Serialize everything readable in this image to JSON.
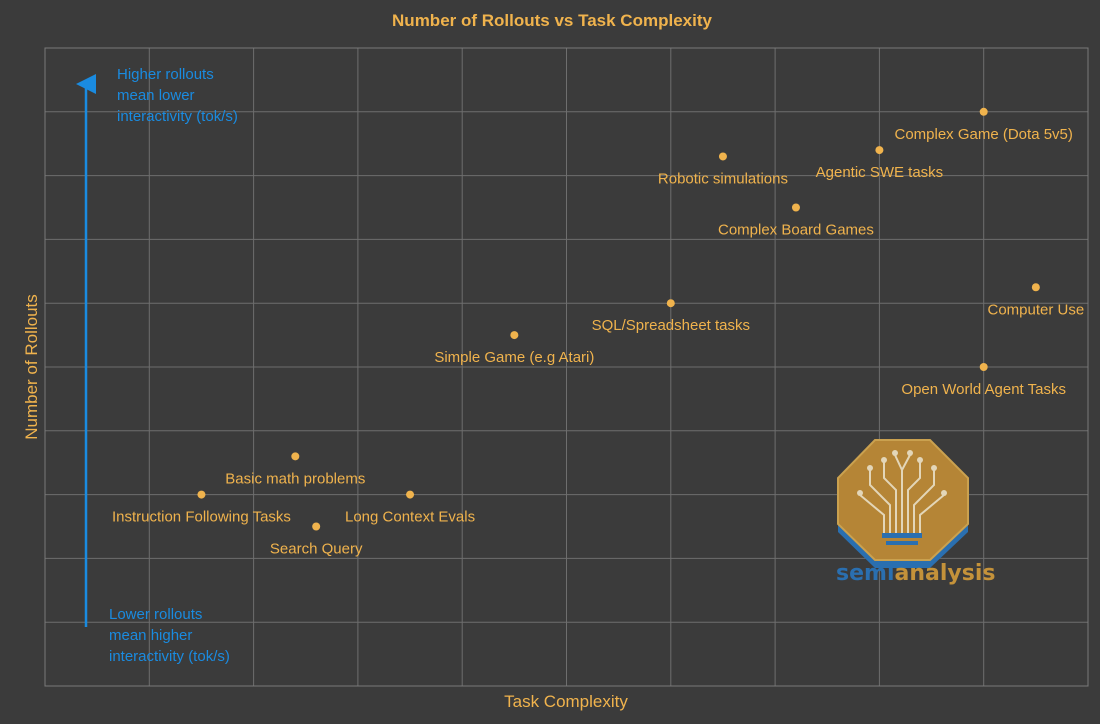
{
  "chart_data": {
    "type": "scatter",
    "title": "Number of Rollouts vs Task Complexity",
    "xlabel": "Task Complexity",
    "ylabel": "Number of Rollouts",
    "xlim": [
      0,
      10
    ],
    "ylim": [
      0,
      10
    ],
    "grid": true,
    "points": [
      {
        "name": "Instruction Following Tasks",
        "x": 1.5,
        "y": 3.0
      },
      {
        "name": "Basic math problems",
        "x": 2.4,
        "y": 3.6
      },
      {
        "name": "Search Query",
        "x": 2.6,
        "y": 2.5
      },
      {
        "name": "Long Context Evals",
        "x": 3.5,
        "y": 3.0
      },
      {
        "name": "Simple Game (e.g Atari)",
        "x": 4.5,
        "y": 5.5
      },
      {
        "name": "SQL/Spreadsheet tasks",
        "x": 6.0,
        "y": 6.0
      },
      {
        "name": "Robotic simulations",
        "x": 6.5,
        "y": 8.3
      },
      {
        "name": "Complex Board Games",
        "x": 7.2,
        "y": 7.5
      },
      {
        "name": "Agentic SWE tasks",
        "x": 8.0,
        "y": 8.4
      },
      {
        "name": "Complex Game (Dota 5v5)",
        "x": 9.0,
        "y": 9.0
      },
      {
        "name": "Computer Use",
        "x": 9.5,
        "y": 6.25
      },
      {
        "name": "Open World Agent Tasks",
        "x": 9.0,
        "y": 5.0
      }
    ],
    "annotations": {
      "top": [
        "Higher rollouts",
        "mean lower",
        "interactivity (tok/s)"
      ],
      "bottom": [
        "Lower rollouts",
        "mean higher",
        "interactivity (tok/s)"
      ]
    },
    "colors": {
      "point": "#f0b34d",
      "text": "#f0b34d",
      "arrow": "#1a8be0",
      "background": "#3b3b3b"
    }
  },
  "logo": {
    "text_part1": "semi",
    "text_part2": "analysis",
    "color_part1": "#2a6fb0",
    "color_part2": "#c4923a"
  }
}
